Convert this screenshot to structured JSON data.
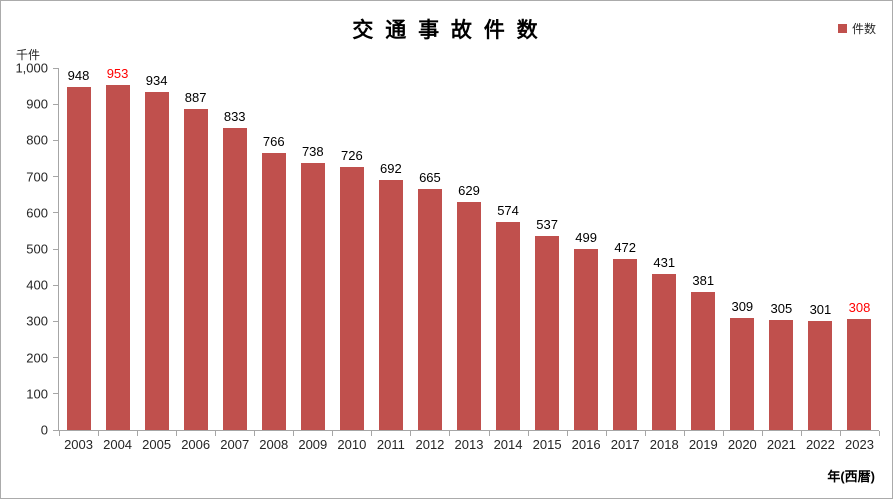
{
  "chart_data": {
    "type": "bar",
    "title": "交 通 事 故 件 数",
    "series_name": "件数",
    "ylabel": "千件",
    "xlabel": "年(西暦)",
    "categories": [
      "2003",
      "2004",
      "2005",
      "2006",
      "2007",
      "2008",
      "2009",
      "2010",
      "2011",
      "2012",
      "2013",
      "2014",
      "2015",
      "2016",
      "2017",
      "2018",
      "2019",
      "2020",
      "2021",
      "2022",
      "2023"
    ],
    "values": [
      948,
      953,
      934,
      887,
      833,
      766,
      738,
      726,
      692,
      665,
      629,
      574,
      537,
      499,
      472,
      431,
      381,
      309,
      305,
      301,
      308
    ],
    "ylim": [
      0,
      1000
    ],
    "ytick_step": 100,
    "grid": false,
    "legend_position": "top-right",
    "highlight_value_indices": [
      1,
      20
    ],
    "colors": {
      "bar": "#c0504d",
      "value_label": "#000000",
      "highlight_value_label": "#ff0000",
      "axis": "#a6a6a6",
      "border": "#ababab",
      "background": "#ffffff"
    }
  }
}
